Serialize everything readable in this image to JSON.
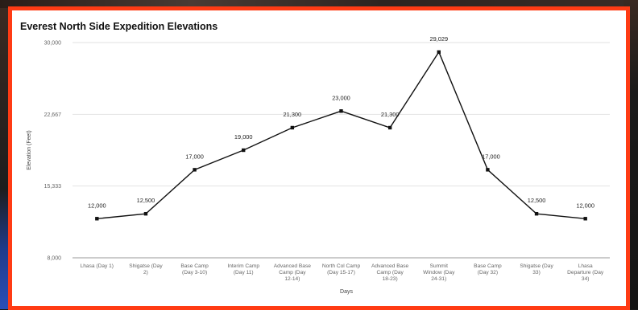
{
  "chart_data": {
    "type": "line",
    "title": "Everest North Side Expedition Elevations",
    "xlabel": "Days",
    "ylabel": "Elevation (Feet)",
    "ylim": [
      8000,
      30000
    ],
    "yticks": [
      "8,000",
      "15,333",
      "22,667",
      "30,000"
    ],
    "ytick_values": [
      8000,
      15333,
      22667,
      30000
    ],
    "grid": true,
    "legend": "none",
    "categories": [
      [
        "Lhasa (Day 1)"
      ],
      [
        "Shigatse (Day",
        "2)"
      ],
      [
        "Base Camp",
        "(Day 3-10)"
      ],
      [
        "Interim Camp",
        "(Day 11)"
      ],
      [
        "Advanced Base",
        "Camp (Day",
        "12-14)"
      ],
      [
        "North Col Camp",
        "(Day 15-17)"
      ],
      [
        "Advanced Base",
        "Camp (Day",
        "18-23)"
      ],
      [
        "Summit",
        "Window (Day",
        "24-31)"
      ],
      [
        "Base Camp",
        "(Day 32)"
      ],
      [
        "Shigatse (Day",
        "33)"
      ],
      [
        "Lhasa",
        "Departure (Day",
        "34)"
      ]
    ],
    "values": [
      12000,
      12500,
      17000,
      19000,
      21300,
      23000,
      21300,
      29029,
      17000,
      12500,
      12000
    ],
    "value_labels": [
      "12,000",
      "12,500",
      "17,000",
      "19,000",
      "21,300",
      "23,000",
      "21,300",
      "29,029",
      "17,000",
      "12,500",
      "12,000"
    ],
    "line_color": "#111111"
  }
}
